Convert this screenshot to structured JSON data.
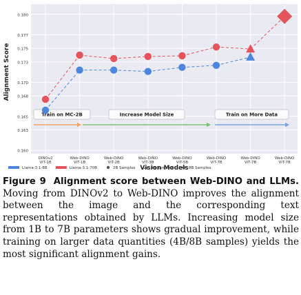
{
  "chart_data": {
    "type": "scatter",
    "ylabel": "Alignment Score",
    "xlabel": "Vision Models",
    "ylim": [
      0.1595,
      0.1815
    ],
    "yticks": [
      0.16,
      0.163,
      0.165,
      0.168,
      0.17,
      0.173,
      0.175,
      0.177,
      0.18
    ],
    "ytick_labels": [
      "0.160",
      "0.163",
      "0.165",
      "0.168",
      "0.170",
      "0.173",
      "0.175",
      "0.177",
      "0.180"
    ],
    "grid": true,
    "categories": [
      {
        "line1": "DINOv2",
        "line2": "ViT-1B"
      },
      {
        "line1": "Web-DINO",
        "line2": "ViT-1B"
      },
      {
        "line1": "Web-DINO",
        "line2": "ViT-2B"
      },
      {
        "line1": "Web-DINO",
        "line2": "ViT-3B"
      },
      {
        "line1": "Web-DINO",
        "line2": "ViT-5B"
      },
      {
        "line1": "Web-DINO",
        "line2": "ViT-7B"
      },
      {
        "line1": "Web-DINO",
        "line2": "ViT-7B"
      },
      {
        "line1": "Web-DINO",
        "line2": "ViT-7B"
      }
    ],
    "series": [
      {
        "name": "Llama-3.1-8B",
        "color": "#4c86dd",
        "values": [
          0.1659,
          0.1718,
          0.1718,
          0.1716,
          0.1722,
          0.1725,
          0.1737,
          null
        ]
      },
      {
        "name": "Llama-3.1-70B",
        "color": "#e5535b",
        "values": [
          0.1675,
          0.174,
          0.1735,
          0.1738,
          0.1739,
          0.1752,
          0.1749,
          0.1797
        ]
      }
    ],
    "marker_legend": [
      {
        "label": "2B Samples",
        "marker": "circle"
      },
      {
        "label": "4B Samples",
        "marker": "triangle"
      },
      {
        "label": "8B Samples",
        "marker": "diamond"
      }
    ],
    "phases": [
      {
        "label": "Train on MC-2B",
        "color": "#f0a36b"
      },
      {
        "label": "Increase Model Size",
        "color": "#7cbf72"
      },
      {
        "label": "Train on More Data",
        "color": "#7aa3e0"
      }
    ],
    "legend_placement": "bottom"
  },
  "caption": {
    "label": "Figure 9",
    "title": "Alignment score between Web-DINO and LLMs.",
    "body": "Moving from DINOv2 to Web-DINO improves the alignment between the image and the corresponding text representations obtained by LLMs. Increasing model size from 1B to 7B parameters shows gradual improvement, while training on larger data quantities (4B/8B samples) yields the most significant alignment gains."
  }
}
